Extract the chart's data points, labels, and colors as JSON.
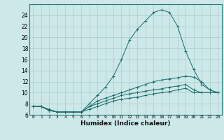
{
  "xlabel": "Humidex (Indice chaleur)",
  "bg_color": "#cce8e8",
  "line_color": "#1a6b6b",
  "grid_color": "#aacccc",
  "xlim": [
    -0.5,
    23.5
  ],
  "ylim": [
    6,
    26
  ],
  "xticks": [
    0,
    1,
    2,
    3,
    4,
    5,
    6,
    7,
    8,
    9,
    10,
    11,
    12,
    13,
    14,
    15,
    16,
    17,
    18,
    19,
    20,
    21,
    22,
    23
  ],
  "yticks": [
    6,
    8,
    10,
    12,
    14,
    16,
    18,
    20,
    22,
    24
  ],
  "series": [
    {
      "x": [
        0,
        1,
        2,
        3,
        4,
        5,
        6,
        7,
        8,
        9,
        10,
        11,
        12,
        13,
        14,
        15,
        16,
        17,
        18,
        19,
        20,
        21,
        22,
        23
      ],
      "y": [
        7.5,
        7.5,
        7.0,
        6.5,
        6.5,
        6.5,
        6.5,
        8.0,
        9.5,
        11.0,
        13.0,
        16.0,
        19.5,
        21.5,
        23.0,
        24.5,
        25.0,
        24.5,
        22.0,
        17.5,
        14.2,
        11.5,
        10.5,
        10.0
      ]
    },
    {
      "x": [
        0,
        1,
        2,
        3,
        4,
        5,
        6,
        7,
        8,
        9,
        10,
        11,
        12,
        13,
        14,
        15,
        16,
        17,
        18,
        19,
        20,
        21,
        22,
        23
      ],
      "y": [
        7.5,
        7.5,
        6.8,
        6.5,
        6.5,
        6.5,
        6.5,
        7.5,
        8.5,
        9.0,
        9.5,
        10.0,
        10.5,
        11.0,
        11.5,
        12.0,
        12.3,
        12.5,
        12.7,
        13.0,
        12.8,
        12.0,
        10.5,
        10.0
      ]
    },
    {
      "x": [
        0,
        1,
        2,
        3,
        4,
        5,
        6,
        7,
        8,
        9,
        10,
        11,
        12,
        13,
        14,
        15,
        16,
        17,
        18,
        19,
        20,
        21,
        22,
        23
      ],
      "y": [
        7.5,
        7.5,
        6.8,
        6.5,
        6.5,
        6.5,
        6.5,
        7.5,
        8.0,
        8.5,
        9.0,
        9.5,
        9.8,
        10.0,
        10.3,
        10.5,
        10.7,
        11.0,
        11.2,
        11.5,
        10.5,
        10.0,
        10.0,
        10.0
      ]
    },
    {
      "x": [
        0,
        1,
        2,
        3,
        4,
        5,
        6,
        7,
        8,
        9,
        10,
        11,
        12,
        13,
        14,
        15,
        16,
        17,
        18,
        19,
        20,
        21,
        22,
        23
      ],
      "y": [
        7.5,
        7.5,
        6.8,
        6.5,
        6.5,
        6.5,
        6.5,
        7.0,
        7.5,
        8.0,
        8.5,
        8.8,
        9.0,
        9.2,
        9.5,
        9.8,
        10.0,
        10.2,
        10.5,
        10.8,
        10.0,
        10.0,
        10.0,
        10.0
      ]
    }
  ]
}
